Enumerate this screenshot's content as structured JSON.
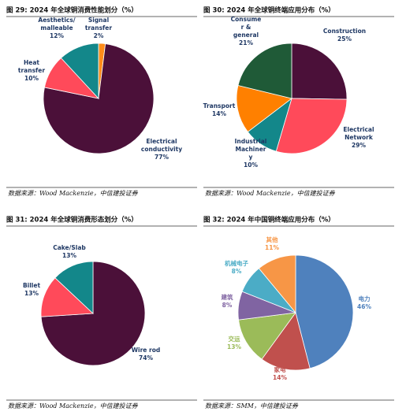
{
  "chart_data": [
    {
      "type": "pie",
      "title": "图 29: 2024 年全球铜消费性能划分（%）",
      "source": "数据来源：Wood Mackenzie，中信建投证券",
      "categories": [
        [
          "Signal",
          "transfer"
        ],
        [
          "Electrical",
          "conductivity"
        ],
        [
          "Heat",
          "transfer"
        ],
        [
          "Aesthetics/",
          "malleable"
        ]
      ],
      "values": [
        2,
        77,
        10,
        12
      ],
      "value_labels": [
        "2%",
        "77%",
        "10%",
        "12%"
      ],
      "colors": [
        "#ff8c1a",
        "#4b1039",
        "#ff4a5a",
        "#13878a"
      ]
    },
    {
      "type": "pie",
      "title": "图 30: 2024 年全球铜终端应用分布（%）",
      "source": "数据来源：Wood Mackenzie，中信建投证券",
      "categories": [
        [
          "Construction"
        ],
        [
          "Electrical",
          "Network"
        ],
        [
          "Industrial",
          "Machiner",
          "y"
        ],
        [
          "Transport"
        ],
        [
          "Consume",
          "r &",
          "general"
        ]
      ],
      "values": [
        25,
        29,
        10,
        14,
        21
      ],
      "value_labels": [
        "25%",
        "29%",
        "10%",
        "14%",
        "21%"
      ],
      "colors": [
        "#4b1039",
        "#ff4a5a",
        "#13878a",
        "#ff8000",
        "#1f5a37"
      ]
    },
    {
      "type": "pie",
      "title": "图 31: 2024 年全球铜消费形态划分（%）",
      "source": "数据来源：Wood Mackenzie，中信建投证券",
      "categories": [
        [
          "Wire rod"
        ],
        [
          "Billet"
        ],
        [
          "Cake/Slab"
        ]
      ],
      "values": [
        74,
        13,
        13
      ],
      "value_labels": [
        "74%",
        "13%",
        "13%"
      ],
      "colors": [
        "#4b1039",
        "#ff4a5a",
        "#13878a"
      ]
    },
    {
      "type": "pie",
      "title": "图 32: 2024 年中国铜终端应用分布（%）",
      "source": "数据来源：SMM，中信建投证券",
      "categories": [
        [
          "电力"
        ],
        [
          "家电"
        ],
        [
          "交运"
        ],
        [
          "建筑"
        ],
        [
          "机械电子"
        ],
        [
          "其他"
        ]
      ],
      "values": [
        46,
        14,
        13,
        8,
        8,
        11
      ],
      "value_labels": [
        "46%",
        "14%",
        "13%",
        "8%",
        "8%",
        "11%"
      ],
      "colors": [
        "#4f81bd",
        "#c0504d",
        "#9bbb59",
        "#8064a2",
        "#4bacc6",
        "#f79646"
      ]
    }
  ]
}
